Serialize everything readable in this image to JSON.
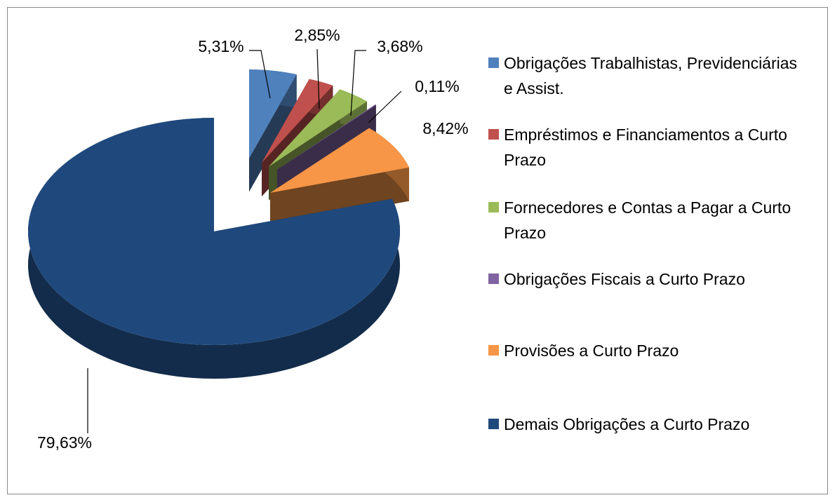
{
  "chart_data": {
    "type": "pie",
    "categories": [
      "Obrigações Trabalhistas, Previdenciárias e Assist.",
      "Empréstimos e Financiamentos a Curto Prazo",
      "Fornecedores e Contas a Pagar a Curto Prazo",
      "Obrigações Fiscais a Curto Prazo",
      "Provisões a Curto Prazo",
      "Demais Obrigações a Curto Prazo"
    ],
    "values": [
      5.31,
      2.85,
      3.68,
      0.11,
      8.42,
      79.63
    ],
    "value_labels": [
      "5,31%",
      "2,85%",
      "3,68%",
      "0,11%",
      "8,42%",
      "79,63%"
    ],
    "colors": [
      "#4f81bd",
      "#c0504d",
      "#9bbb59",
      "#8064a2",
      "#f79646",
      "#1f497d"
    ],
    "legend": "right"
  }
}
